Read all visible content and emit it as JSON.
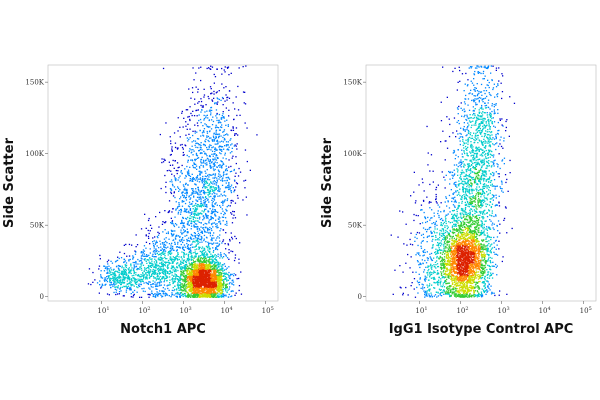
{
  "chart_data": [
    {
      "type": "scatter",
      "subtype": "flow-cytometry density dot plot",
      "xlabel": "Notch1 APC",
      "ylabel": "Side Scatter",
      "x_scale": "log",
      "xlim": [
        0.5,
        200000
      ],
      "ylim": [
        -3000,
        162000
      ],
      "x_ticks": [
        {
          "value": 10,
          "base": "10",
          "exp": "1"
        },
        {
          "value": 100,
          "base": "10",
          "exp": "2"
        },
        {
          "value": 1000,
          "base": "10",
          "exp": "3"
        },
        {
          "value": 10000,
          "base": "10",
          "exp": "4"
        },
        {
          "value": 100000,
          "base": "10",
          "exp": "5"
        }
      ],
      "y_ticks": [
        {
          "value": 0,
          "label": "0"
        },
        {
          "value": 50000,
          "label": "50K"
        },
        {
          "value": 100000,
          "label": "100K"
        },
        {
          "value": 150000,
          "label": "150K"
        }
      ],
      "populations": [
        {
          "x_center": 3000,
          "x_spread_decades": 0.28,
          "y_center": 12000,
          "y_spread": 8000,
          "weight": 0.42
        },
        {
          "x_center": 2000,
          "x_spread_decades": 0.4,
          "y_center": 55000,
          "y_spread": 35000,
          "weight": 0.25
        },
        {
          "x_center": 250,
          "x_spread_decades": 0.35,
          "y_center": 22000,
          "y_spread": 12000,
          "weight": 0.13
        },
        {
          "x_center": 30,
          "x_spread_decades": 0.3,
          "y_center": 14000,
          "y_spread": 6000,
          "weight": 0.08
        },
        {
          "x_center": 6000,
          "x_spread_decades": 0.3,
          "y_center": 100000,
          "y_spread": 30000,
          "weight": 0.12
        }
      ],
      "density_colors": [
        "#0000cc",
        "#0088ff",
        "#00cccc",
        "#33cc33",
        "#ccdd00",
        "#ff8800",
        "#dd2200"
      ],
      "event_count": 5000
    },
    {
      "type": "scatter",
      "subtype": "flow-cytometry density dot plot",
      "xlabel": "IgG1 Isotype Control APC",
      "ylabel": "Side Scatter",
      "x_scale": "log",
      "xlim": [
        0.5,
        200000
      ],
      "ylim": [
        -3000,
        162000
      ],
      "x_ticks": [
        {
          "value": 10,
          "base": "10",
          "exp": "1"
        },
        {
          "value": 100,
          "base": "10",
          "exp": "2"
        },
        {
          "value": 1000,
          "base": "10",
          "exp": "3"
        },
        {
          "value": 10000,
          "base": "10",
          "exp": "4"
        },
        {
          "value": 100000,
          "base": "10",
          "exp": "5"
        }
      ],
      "y_ticks": [
        {
          "value": 0,
          "label": "0"
        },
        {
          "value": 50000,
          "label": "50K"
        },
        {
          "value": 100000,
          "label": "100K"
        },
        {
          "value": 150000,
          "label": "150K"
        }
      ],
      "populations": [
        {
          "x_center": 120,
          "x_spread_decades": 0.3,
          "y_center": 25000,
          "y_spread": 15000,
          "weight": 0.5
        },
        {
          "x_center": 200,
          "x_spread_decades": 0.32,
          "y_center": 70000,
          "y_spread": 35000,
          "weight": 0.3
        },
        {
          "x_center": 20,
          "x_spread_decades": 0.35,
          "y_center": 30000,
          "y_spread": 25000,
          "weight": 0.1
        },
        {
          "x_center": 350,
          "x_spread_decades": 0.25,
          "y_center": 120000,
          "y_spread": 25000,
          "weight": 0.1
        }
      ],
      "density_colors": [
        "#0000cc",
        "#0088ff",
        "#00cccc",
        "#33cc33",
        "#ccdd00",
        "#ff8800",
        "#dd2200"
      ],
      "event_count": 4200
    }
  ]
}
